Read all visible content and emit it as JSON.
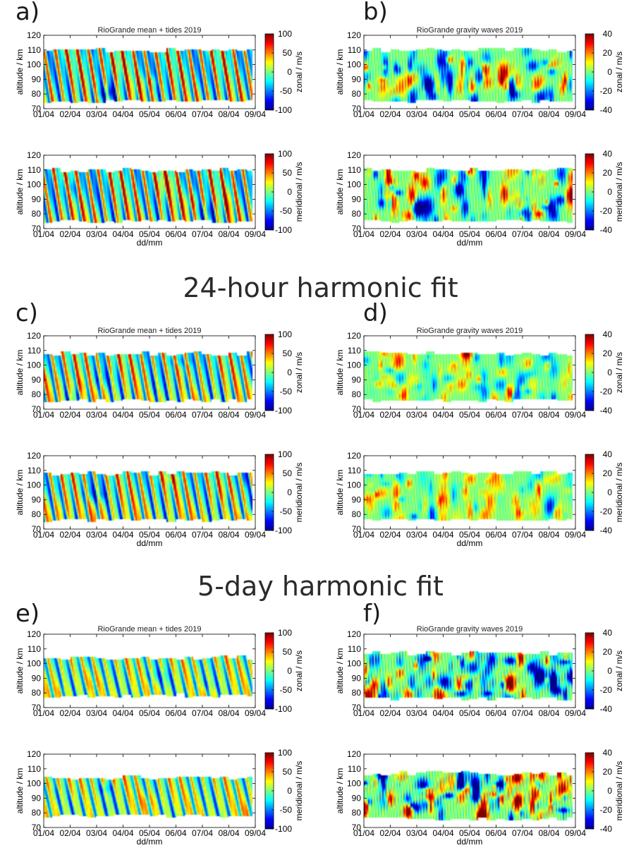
{
  "section_titles": [
    "24-hour harmonic fit",
    "5-day harmonic fit"
  ],
  "panel_letters": [
    "a)",
    "b)",
    "c)",
    "d)",
    "e)",
    "f)"
  ],
  "colormap": "jet",
  "colors": {
    "jet_stops": [
      "#00008f",
      "#0000ff",
      "#0080ff",
      "#00ffff",
      "#80ff80",
      "#ffff00",
      "#ff8000",
      "#ff0000",
      "#800000"
    ]
  },
  "chart_data": [
    {
      "id": "a",
      "type": "heatmap",
      "title": "RioGrande mean + tides 2019",
      "subplots": [
        {
          "component": "zonal",
          "cbar_label": "zonal / m/s",
          "clim": [
            -100,
            100
          ],
          "cbar_ticks": [
            "100",
            "50",
            "0",
            "-50",
            "-100"
          ],
          "show_xlabel": false
        },
        {
          "component": "meridional",
          "cbar_label": "meridional / m/s",
          "clim": [
            -100,
            100
          ],
          "cbar_ticks": [
            "100",
            "50",
            "0",
            "-50",
            "-100"
          ],
          "show_xlabel": true
        }
      ],
      "ylabel": "altitude / km",
      "xlabel": "dd/mm",
      "y_ticks": [
        "70",
        "80",
        "90",
        "100",
        "110",
        "120"
      ],
      "ylim": [
        70,
        120
      ],
      "x_ticks": [
        "01/04",
        "02/04",
        "03/04",
        "04/04",
        "05/04",
        "06/04",
        "07/04",
        "08/04",
        "09/04"
      ],
      "data_alt_range": [
        75,
        110
      ],
      "field": "tidal",
      "amplitude": 1.0
    },
    {
      "id": "b",
      "type": "heatmap",
      "title": "RioGrande gravity waves 2019",
      "subplots": [
        {
          "component": "zonal",
          "cbar_label": "zonal / m/s",
          "clim": [
            -40,
            40
          ],
          "cbar_ticks": [
            "40",
            "20",
            "0",
            "-20",
            "-40"
          ],
          "show_xlabel": false
        },
        {
          "component": "meridional",
          "cbar_label": "meridional / m/s",
          "clim": [
            -40,
            40
          ],
          "cbar_ticks": [
            "40",
            "20",
            "0",
            "-20",
            "-40"
          ],
          "show_xlabel": true
        }
      ],
      "ylabel": "altitude / km",
      "xlabel": "dd/mm",
      "y_ticks": [
        "70",
        "80",
        "90",
        "100",
        "110",
        "120"
      ],
      "ylim": [
        70,
        120
      ],
      "x_ticks": [
        "01/04",
        "02/04",
        "03/04",
        "04/04",
        "05/04",
        "06/04",
        "07/04",
        "08/04",
        "09/04"
      ],
      "data_alt_range": [
        75,
        110
      ],
      "field": "gw",
      "amplitude": 1.0
    },
    {
      "id": "c",
      "type": "heatmap",
      "title": "RioGrande mean + tides 2019",
      "subplots": [
        {
          "component": "zonal",
          "cbar_label": "zonal / m/s",
          "clim": [
            -100,
            100
          ],
          "cbar_ticks": [
            "100",
            "50",
            "0",
            "-50",
            "-100"
          ],
          "show_xlabel": false
        },
        {
          "component": "meridional",
          "cbar_label": "meridional / m/s",
          "clim": [
            -100,
            100
          ],
          "cbar_ticks": [
            "100",
            "50",
            "0",
            "-50",
            "-100"
          ],
          "show_xlabel": true
        }
      ],
      "ylabel": "altitude / km",
      "xlabel": "dd/mm",
      "y_ticks": [
        "70",
        "80",
        "90",
        "100",
        "110",
        "120"
      ],
      "ylim": [
        70,
        120
      ],
      "x_ticks": [
        "01/04",
        "02/04",
        "03/04",
        "04/04",
        "05/04",
        "06/04",
        "07/04",
        "08/04",
        "09/04"
      ],
      "data_alt_range": [
        76,
        108
      ],
      "field": "tidal",
      "amplitude": 0.9
    },
    {
      "id": "d",
      "type": "heatmap",
      "title": "RioGrande gravity waves 2019",
      "subplots": [
        {
          "component": "zonal",
          "cbar_label": "zonal / m/s",
          "clim": [
            -40,
            40
          ],
          "cbar_ticks": [
            "40",
            "20",
            "0",
            "-20",
            "-40"
          ],
          "show_xlabel": false
        },
        {
          "component": "meridional",
          "cbar_label": "meridional / m/s",
          "clim": [
            -40,
            40
          ],
          "cbar_ticks": [
            "40",
            "20",
            "0",
            "-20",
            "-40"
          ],
          "show_xlabel": true
        }
      ],
      "ylabel": "altitude / km",
      "xlabel": "dd/mm",
      "y_ticks": [
        "70",
        "80",
        "90",
        "100",
        "110",
        "120"
      ],
      "ylim": [
        70,
        120
      ],
      "x_ticks": [
        "01/04",
        "02/04",
        "03/04",
        "04/04",
        "05/04",
        "06/04",
        "07/04",
        "08/04",
        "09/04"
      ],
      "data_alt_range": [
        76,
        108
      ],
      "field": "gw",
      "amplitude": 0.7
    },
    {
      "id": "e",
      "type": "heatmap",
      "title": "RioGrande mean + tides 2019",
      "subplots": [
        {
          "component": "zonal",
          "cbar_label": "zonal / m/s",
          "clim": [
            -100,
            100
          ],
          "cbar_ticks": [
            "100",
            "50",
            "0",
            "-50",
            "-100"
          ],
          "show_xlabel": false
        },
        {
          "component": "meridional",
          "cbar_label": "meridional / m/s",
          "clim": [
            -100,
            100
          ],
          "cbar_ticks": [
            "100",
            "50",
            "0",
            "-50",
            "-100"
          ],
          "show_xlabel": true
        }
      ],
      "ylabel": "altitude / km",
      "xlabel": "dd/mm",
      "y_ticks": [
        "70",
        "80",
        "90",
        "100",
        "110",
        "120"
      ],
      "ylim": [
        70,
        120
      ],
      "x_ticks": [
        "01/04",
        "02/04",
        "03/04",
        "04/04",
        "05/04",
        "06/04",
        "07/04",
        "08/04",
        "09/04"
      ],
      "data_alt_range": [
        78,
        104
      ],
      "field": "tidal",
      "amplitude": 0.75
    },
    {
      "id": "f",
      "type": "heatmap",
      "title": "RioGrande gravity waves 2019",
      "subplots": [
        {
          "component": "zonal",
          "cbar_label": "zonal / m/s",
          "clim": [
            -40,
            40
          ],
          "cbar_ticks": [
            "40",
            "20",
            "0",
            "-20",
            "-40"
          ],
          "show_xlabel": false
        },
        {
          "component": "meridional",
          "cbar_label": "meridional / m/s",
          "clim": [
            -40,
            40
          ],
          "cbar_ticks": [
            "40",
            "20",
            "0",
            "-20",
            "-40"
          ],
          "show_xlabel": true
        }
      ],
      "ylabel": "altitude / km",
      "xlabel": "dd/mm",
      "y_ticks": [
        "70",
        "80",
        "90",
        "100",
        "110",
        "120"
      ],
      "ylim": [
        70,
        120
      ],
      "x_ticks": [
        "01/04",
        "02/04",
        "03/04",
        "04/04",
        "05/04",
        "06/04",
        "07/04",
        "08/04",
        "09/04"
      ],
      "data_alt_range": [
        76,
        107
      ],
      "field": "gw",
      "amplitude": 1.25
    }
  ]
}
